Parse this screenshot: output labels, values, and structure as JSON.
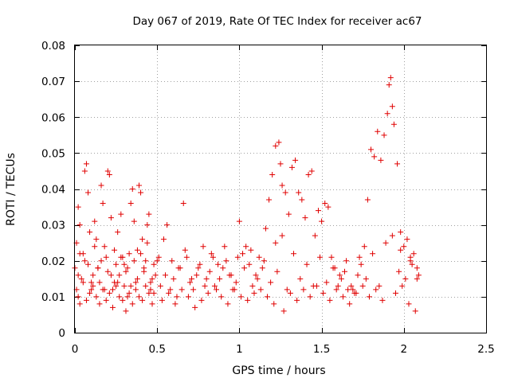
{
  "chart_data": {
    "type": "scatter",
    "title": "Day 067 of 2019, Rate Of TEC Index for receiver ac67",
    "xlabel": "GPS time / hours",
    "ylabel": "ROTI / TECUs",
    "xlim": [
      0,
      2.5
    ],
    "ylim": [
      0,
      0.08
    ],
    "xticks": [
      0,
      0.5,
      1,
      1.5,
      2,
      2.5
    ],
    "xtick_labels": [
      "0",
      "0.5",
      "1",
      "1.5",
      "2",
      "2.5"
    ],
    "yticks": [
      0,
      0.01,
      0.02,
      0.03,
      0.04,
      0.05,
      0.06,
      0.07,
      0.08
    ],
    "ytick_labels": [
      "0",
      "0.01",
      "0.02",
      "0.03",
      "0.04",
      "0.05",
      "0.06",
      "0.07",
      "0.08"
    ],
    "grid": true,
    "marker": "+",
    "color": "#e00000",
    "series": [
      {
        "name": "ROTI",
        "x": [
          0.0,
          0.01,
          0.02,
          0.03,
          0.04,
          0.05,
          0.06,
          0.07,
          0.08,
          0.09,
          0.1,
          0.11,
          0.12,
          0.13,
          0.14,
          0.15,
          0.16,
          0.17,
          0.18,
          0.19,
          0.2,
          0.21,
          0.22,
          0.23,
          0.24,
          0.25,
          0.26,
          0.27,
          0.28,
          0.29,
          0.3,
          0.31,
          0.32,
          0.33,
          0.34,
          0.35,
          0.36,
          0.37,
          0.38,
          0.39,
          0.4,
          0.41,
          0.42,
          0.43,
          0.44,
          0.45,
          0.46,
          0.47,
          0.48,
          0.49,
          0.5,
          0.52,
          0.54,
          0.56,
          0.58,
          0.6,
          0.62,
          0.64,
          0.66,
          0.68,
          0.7,
          0.72,
          0.74,
          0.76,
          0.78,
          0.8,
          0.82,
          0.84,
          0.86,
          0.88,
          0.9,
          0.92,
          0.94,
          0.96,
          0.98,
          1.0,
          1.02,
          1.04,
          1.06,
          1.08,
          1.1,
          1.12,
          1.14,
          1.16,
          1.18,
          1.2,
          1.22,
          1.24,
          1.25,
          1.26,
          1.28,
          1.3,
          1.32,
          1.34,
          1.36,
          1.38,
          1.4,
          1.42,
          1.44,
          1.46,
          1.48,
          1.5,
          1.52,
          1.54,
          1.56,
          1.58,
          1.6,
          1.62,
          1.64,
          1.66,
          1.68,
          1.7,
          1.72,
          1.74,
          1.76,
          1.78,
          1.8,
          1.82,
          1.84,
          1.86,
          1.88,
          1.9,
          1.91,
          1.92,
          1.93,
          1.94,
          1.96,
          1.98,
          2.0,
          2.02,
          2.04,
          2.06,
          2.08,
          2.09,
          0.01,
          0.02,
          0.03,
          0.05,
          0.07,
          0.09,
          0.11,
          0.13,
          0.15,
          0.17,
          0.19,
          0.21,
          0.23,
          0.25,
          0.27,
          0.29,
          0.31,
          0.33,
          0.35,
          0.37,
          0.39,
          0.41,
          0.43,
          0.45,
          0.47,
          0.53,
          0.57,
          0.61,
          0.65,
          0.69,
          0.73,
          0.77,
          0.81,
          0.85,
          0.89,
          0.93,
          0.97,
          1.01,
          1.05,
          1.09,
          1.13,
          1.17,
          1.21,
          1.27,
          1.31,
          1.35,
          1.39,
          1.43,
          1.47,
          1.51,
          1.55,
          1.59,
          1.63,
          1.67,
          1.71,
          1.75,
          1.79,
          1.83,
          1.87,
          1.95,
          1.99,
          2.03,
          2.07,
          0.02,
          0.06,
          0.1,
          0.14,
          0.18,
          0.22,
          0.26,
          0.3,
          0.34,
          0.38,
          0.42,
          0.46,
          0.55,
          0.63,
          0.71,
          0.79,
          0.87,
          0.95,
          1.03,
          1.11,
          1.19,
          1.23,
          1.29,
          1.37,
          1.45,
          1.53,
          1.61,
          1.69,
          1.77,
          1.85,
          1.97,
          2.01,
          2.05,
          2.08,
          0.03,
          0.08,
          0.12,
          0.16,
          0.2,
          0.24,
          0.28,
          0.32,
          0.36,
          0.4,
          0.44,
          0.48,
          0.51,
          0.59,
          0.67,
          0.75,
          0.83,
          0.91,
          0.99,
          1.07,
          1.15,
          1.22,
          1.26,
          1.33,
          1.41,
          1.49,
          1.57,
          1.65,
          1.73,
          1.81,
          1.89,
          1.93,
          1.98,
          2.04
        ],
        "y": [
          0.018,
          0.025,
          0.035,
          0.03,
          0.015,
          0.022,
          0.045,
          0.047,
          0.039,
          0.028,
          0.012,
          0.016,
          0.031,
          0.026,
          0.018,
          0.014,
          0.041,
          0.036,
          0.024,
          0.021,
          0.045,
          0.044,
          0.032,
          0.012,
          0.014,
          0.019,
          0.028,
          0.016,
          0.033,
          0.021,
          0.013,
          0.017,
          0.01,
          0.022,
          0.036,
          0.04,
          0.031,
          0.014,
          0.023,
          0.041,
          0.039,
          0.026,
          0.018,
          0.02,
          0.03,
          0.033,
          0.012,
          0.015,
          0.011,
          0.016,
          0.02,
          0.013,
          0.026,
          0.03,
          0.012,
          0.015,
          0.01,
          0.018,
          0.036,
          0.021,
          0.014,
          0.012,
          0.016,
          0.019,
          0.024,
          0.015,
          0.017,
          0.021,
          0.012,
          0.015,
          0.018,
          0.02,
          0.016,
          0.012,
          0.014,
          0.031,
          0.022,
          0.024,
          0.019,
          0.013,
          0.016,
          0.021,
          0.018,
          0.029,
          0.037,
          0.044,
          0.052,
          0.053,
          0.047,
          0.041,
          0.039,
          0.033,
          0.046,
          0.048,
          0.039,
          0.037,
          0.032,
          0.044,
          0.045,
          0.027,
          0.034,
          0.031,
          0.036,
          0.035,
          0.021,
          0.018,
          0.013,
          0.015,
          0.017,
          0.012,
          0.013,
          0.011,
          0.016,
          0.019,
          0.024,
          0.037,
          0.051,
          0.049,
          0.056,
          0.048,
          0.055,
          0.061,
          0.069,
          0.071,
          0.063,
          0.058,
          0.047,
          0.028,
          0.024,
          0.026,
          0.02,
          0.022,
          0.018,
          0.016,
          0.012,
          0.01,
          0.008,
          0.014,
          0.009,
          0.011,
          0.013,
          0.01,
          0.008,
          0.012,
          0.009,
          0.011,
          0.007,
          0.013,
          0.01,
          0.009,
          0.006,
          0.011,
          0.008,
          0.012,
          0.01,
          0.009,
          0.013,
          0.011,
          0.008,
          0.009,
          0.011,
          0.008,
          0.012,
          0.01,
          0.007,
          0.009,
          0.011,
          0.013,
          0.01,
          0.008,
          0.012,
          0.01,
          0.009,
          0.011,
          0.012,
          0.01,
          0.008,
          0.006,
          0.011,
          0.009,
          0.012,
          0.01,
          0.013,
          0.011,
          0.009,
          0.012,
          0.01,
          0.008,
          0.011,
          0.013,
          0.01,
          0.012,
          0.009,
          0.011,
          0.013,
          0.008,
          0.006,
          0.016,
          0.02,
          0.014,
          0.018,
          0.012,
          0.016,
          0.014,
          0.019,
          0.013,
          0.015,
          0.017,
          0.014,
          0.016,
          0.018,
          0.015,
          0.013,
          0.019,
          0.016,
          0.018,
          0.015,
          0.014,
          0.017,
          0.012,
          0.015,
          0.013,
          0.014,
          0.016,
          0.012,
          0.015,
          0.013,
          0.017,
          0.015,
          0.019,
          0.015,
          0.022,
          0.019,
          0.024,
          0.02,
          0.017,
          0.023,
          0.021,
          0.018,
          0.02,
          0.022,
          0.025,
          0.019,
          0.021,
          0.02,
          0.023,
          0.018,
          0.022,
          0.024,
          0.021,
          0.023,
          0.02,
          0.025,
          0.027,
          0.022,
          0.019,
          0.021,
          0.018,
          0.02,
          0.021,
          0.022,
          0.025,
          0.027,
          0.023,
          0.021
        ]
      }
    ]
  }
}
